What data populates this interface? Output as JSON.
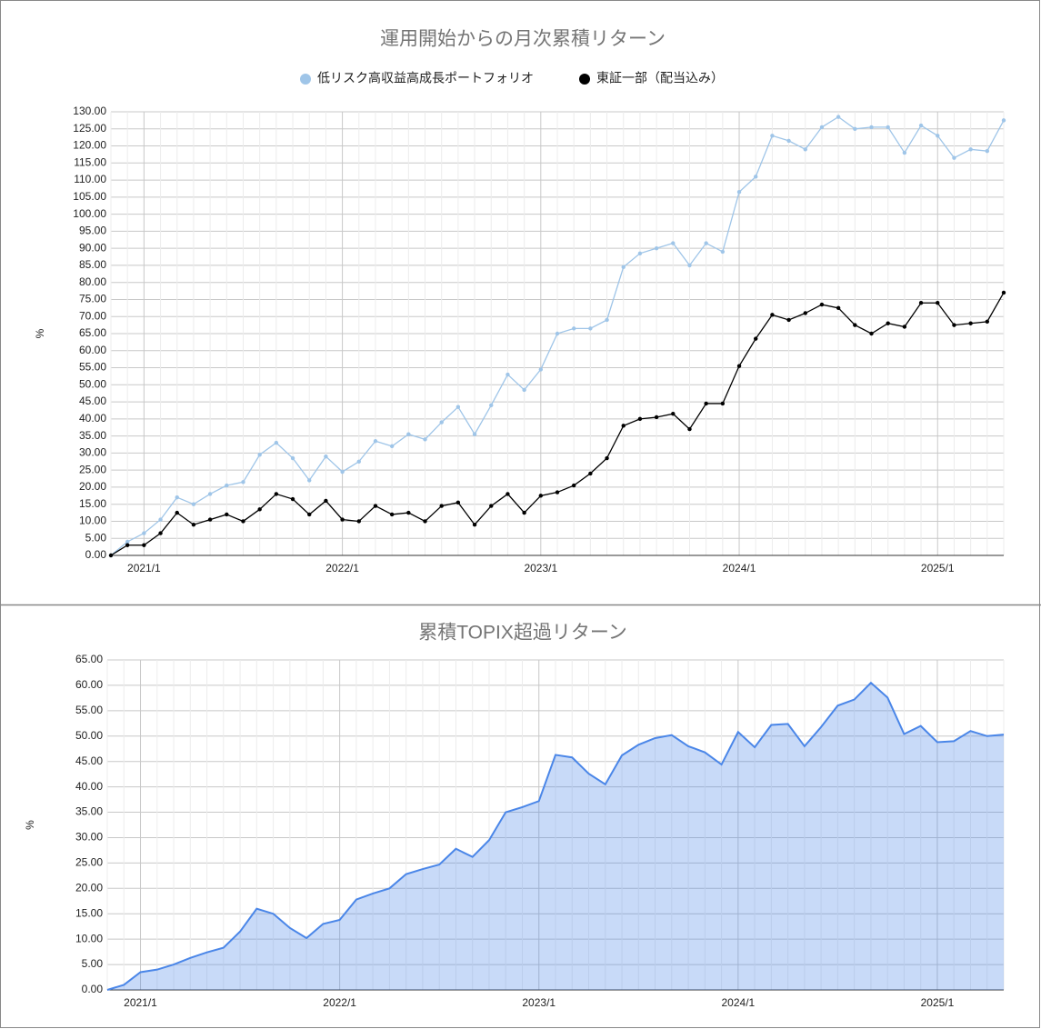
{
  "chart_data": [
    {
      "type": "line",
      "title": "運用開始からの月次累積リターン",
      "y_label": "%",
      "legend": "top",
      "grid": true,
      "categories": [
        null,
        null,
        "2021/1",
        null,
        null,
        null,
        null,
        null,
        null,
        null,
        null,
        null,
        null,
        null,
        "2022/1",
        null,
        null,
        null,
        null,
        null,
        null,
        null,
        null,
        null,
        null,
        null,
        "2023/1",
        null,
        null,
        null,
        null,
        null,
        null,
        null,
        null,
        null,
        null,
        null,
        "2024/1",
        null,
        null,
        null,
        null,
        null,
        null,
        null,
        null,
        null,
        null,
        null,
        "2025/1",
        null,
        null,
        null,
        null
      ],
      "ylim": [
        0,
        130
      ],
      "yticks": [
        {
          "value": 0,
          "label": "0.00"
        },
        {
          "value": 5,
          "label": "5.00"
        },
        {
          "value": 10,
          "label": "10.00"
        },
        {
          "value": 15,
          "label": "15.00"
        },
        {
          "value": 20,
          "label": "20.00"
        },
        {
          "value": 25,
          "label": "25.00"
        },
        {
          "value": 30,
          "label": "30.00"
        },
        {
          "value": 35,
          "label": "35.00"
        },
        {
          "value": 40,
          "label": "40.00"
        },
        {
          "value": 45,
          "label": "45.00"
        },
        {
          "value": 50,
          "label": "50.00"
        },
        {
          "value": 55,
          "label": "55.00"
        },
        {
          "value": 60,
          "label": "60.00"
        },
        {
          "value": 65,
          "label": "65.00"
        },
        {
          "value": 70,
          "label": "70.00"
        },
        {
          "value": 75,
          "label": "75.00"
        },
        {
          "value": 80,
          "label": "80.00"
        },
        {
          "value": 85,
          "label": "85.00"
        },
        {
          "value": 90,
          "label": "90.00"
        },
        {
          "value": 95,
          "label": "95.00"
        },
        {
          "value": 100,
          "label": "100.00"
        },
        {
          "value": 105,
          "label": "105.00"
        },
        {
          "value": 110,
          "label": "110.00"
        },
        {
          "value": 115,
          "label": "115.00"
        },
        {
          "value": 120,
          "label": "120.00"
        },
        {
          "value": 125,
          "label": "125.00"
        },
        {
          "value": 130,
          "label": "130.00"
        }
      ],
      "series": [
        {
          "name": "低リスク高収益高成長ポートフォリオ",
          "color": "#9fc5e8",
          "values": [
            0,
            4,
            6.5,
            10.5,
            17,
            15,
            18,
            20.5,
            21.5,
            29.5,
            33,
            28.5,
            22,
            29,
            24.5,
            27.5,
            33.5,
            32,
            35.5,
            34,
            39,
            43.5,
            35.5,
            44,
            53,
            48.5,
            54.5,
            65,
            66.5,
            66.5,
            69,
            84.5,
            88.5,
            90,
            91.5,
            85,
            91.5,
            89,
            106.5,
            111,
            123,
            121.5,
            119,
            125.5,
            128.5,
            125,
            125.5,
            125.5,
            118,
            126,
            123,
            116.5,
            119,
            118.5,
            127.5
          ]
        },
        {
          "name": "東証一部（配当込み）",
          "color": "#000000",
          "values": [
            0,
            3,
            3,
            6.5,
            12.5,
            9,
            10.5,
            12,
            10,
            13.5,
            18,
            16.5,
            12,
            16,
            10.5,
            10,
            14.5,
            12,
            12.5,
            10,
            14.5,
            15.5,
            9,
            14.5,
            18,
            12.5,
            17.5,
            18.5,
            20.5,
            24,
            28.5,
            38,
            40,
            40.5,
            41.5,
            37,
            44.5,
            44.5,
            55.5,
            63.5,
            70.5,
            69,
            71,
            73.5,
            72.5,
            67.5,
            65,
            68,
            67,
            74,
            74,
            67.5,
            68,
            68.5,
            77
          ]
        }
      ]
    },
    {
      "type": "area",
      "title": "累積TOPIX超過リターン",
      "y_label": "%",
      "grid": true,
      "color": "#4a86e8",
      "categories": [
        null,
        null,
        "2021/1",
        null,
        null,
        null,
        null,
        null,
        null,
        null,
        null,
        null,
        null,
        null,
        "2022/1",
        null,
        null,
        null,
        null,
        null,
        null,
        null,
        null,
        null,
        null,
        null,
        "2023/1",
        null,
        null,
        null,
        null,
        null,
        null,
        null,
        null,
        null,
        null,
        null,
        "2024/1",
        null,
        null,
        null,
        null,
        null,
        null,
        null,
        null,
        null,
        null,
        null,
        "2025/1",
        null,
        null,
        null,
        null
      ],
      "ylim": [
        0,
        65
      ],
      "yticks": [
        {
          "value": 0,
          "label": "0.00"
        },
        {
          "value": 5,
          "label": "5.00"
        },
        {
          "value": 10,
          "label": "10.00"
        },
        {
          "value": 15,
          "label": "15.00"
        },
        {
          "value": 20,
          "label": "20.00"
        },
        {
          "value": 25,
          "label": "25.00"
        },
        {
          "value": 30,
          "label": "30.00"
        },
        {
          "value": 35,
          "label": "35.00"
        },
        {
          "value": 40,
          "label": "40.00"
        },
        {
          "value": 45,
          "label": "45.00"
        },
        {
          "value": 50,
          "label": "50.00"
        },
        {
          "value": 55,
          "label": "55.00"
        },
        {
          "value": 60,
          "label": "60.00"
        },
        {
          "value": 65,
          "label": "65.00"
        }
      ],
      "values": [
        0,
        1,
        3.5,
        4,
        5,
        6.3,
        7.4,
        8.3,
        11.5,
        16,
        15,
        12.2,
        10.2,
        13,
        13.8,
        17.8,
        19,
        20,
        22.8,
        23.8,
        24.7,
        27.8,
        26.2,
        29.5,
        35,
        36,
        37.2,
        46.3,
        45.8,
        42.6,
        40.5,
        46.2,
        48.3,
        49.6,
        50.2,
        48,
        46.8,
        44.4,
        50.8,
        47.8,
        52.2,
        52.4,
        48,
        51.8,
        56,
        57.2,
        60.5,
        57.6,
        50.4,
        52,
        48.8,
        49,
        51,
        50,
        50.3
      ]
    }
  ]
}
